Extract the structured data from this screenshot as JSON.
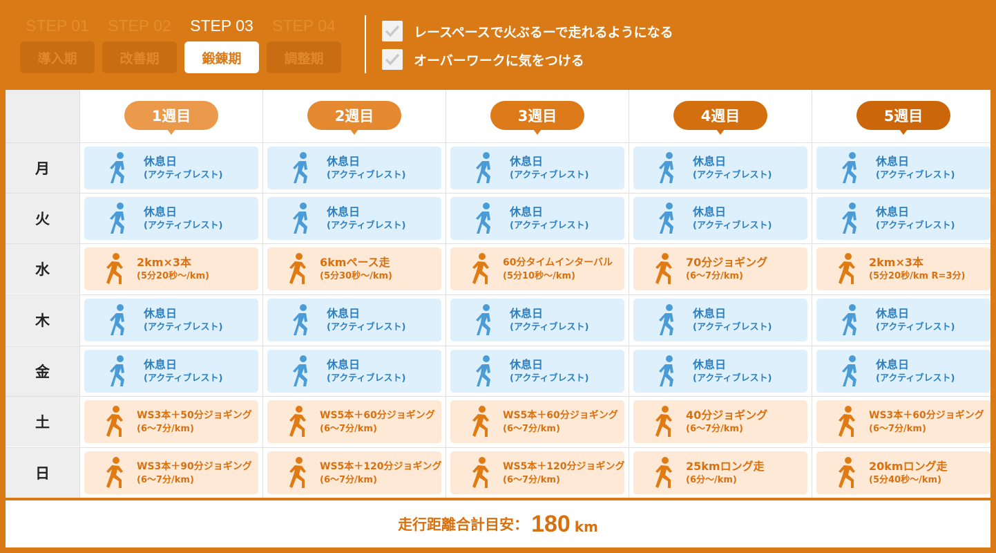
{
  "steps": [
    {
      "step": "STEP 01",
      "phase": "導入期"
    },
    {
      "step": "STEP 02",
      "phase": "改善期"
    },
    {
      "step": "STEP 03",
      "phase": "鍛錬期"
    },
    {
      "step": "STEP 04",
      "phase": "調整期"
    }
  ],
  "active_step": 2,
  "goals": [
    "レースペースで火ぶるーで走れるようになる",
    "オーバーワークに気をつける"
  ],
  "weeks": [
    "1週目",
    "2週目",
    "3週目",
    "4週目",
    "5週目"
  ],
  "week_colors": [
    "#eb9a4c",
    "#e58930",
    "#dd7a1a",
    "#d46f10",
    "#cc660b"
  ],
  "days": [
    "月",
    "火",
    "水",
    "木",
    "金",
    "土",
    "日"
  ],
  "schedule": [
    [
      {
        "type": "rest",
        "main": "休息日",
        "sub": "(アクティブレスト)"
      },
      {
        "type": "rest",
        "main": "休息日",
        "sub": "(アクティブレスト)"
      },
      {
        "type": "run",
        "main": "2km×3本",
        "sub": "(5分20秒〜/km)"
      },
      {
        "type": "rest",
        "main": "休息日",
        "sub": "(アクティブレスト)"
      },
      {
        "type": "rest",
        "main": "休息日",
        "sub": "(アクティブレスト)"
      },
      {
        "type": "run",
        "main": "WS3本＋50分ジョギング",
        "sub": "(6〜7分/km)"
      },
      {
        "type": "run",
        "main": "WS3本＋90分ジョギング",
        "sub": "(6〜7分/km)"
      }
    ],
    [
      {
        "type": "rest",
        "main": "休息日",
        "sub": "(アクティブレスト)"
      },
      {
        "type": "rest",
        "main": "休息日",
        "sub": "(アクティブレスト)"
      },
      {
        "type": "run",
        "main": "6kmペース走",
        "sub": "(5分30秒〜/km)"
      },
      {
        "type": "rest",
        "main": "休息日",
        "sub": "(アクティブレスト)"
      },
      {
        "type": "rest",
        "main": "休息日",
        "sub": "(アクティブレスト)"
      },
      {
        "type": "run",
        "main": "WS5本＋60分ジョギング",
        "sub": "(6〜7分/km)"
      },
      {
        "type": "run",
        "main": "WS5本＋120分ジョギング",
        "sub": "(6〜7分/km)"
      }
    ],
    [
      {
        "type": "rest",
        "main": "休息日",
        "sub": "(アクティブレスト)"
      },
      {
        "type": "rest",
        "main": "休息日",
        "sub": "(アクティブレスト)"
      },
      {
        "type": "run",
        "main": "60分タイムインターバル",
        "sub": "(5分10秒〜/km)"
      },
      {
        "type": "rest",
        "main": "休息日",
        "sub": "(アクティブレスト)"
      },
      {
        "type": "rest",
        "main": "休息日",
        "sub": "(アクティブレスト)"
      },
      {
        "type": "run",
        "main": "WS5本＋60分ジョギング",
        "sub": "(6〜7分/km)"
      },
      {
        "type": "run",
        "main": "WS5本＋120分ジョギング",
        "sub": "(6〜7分/km)"
      }
    ],
    [
      {
        "type": "rest",
        "main": "休息日",
        "sub": "(アクティブレスト)"
      },
      {
        "type": "rest",
        "main": "休息日",
        "sub": "(アクティブレスト)"
      },
      {
        "type": "run",
        "main": "70分ジョギング",
        "sub": "(6〜7分/km)"
      },
      {
        "type": "rest",
        "main": "休息日",
        "sub": "(アクティブレスト)"
      },
      {
        "type": "rest",
        "main": "休息日",
        "sub": "(アクティブレスト)"
      },
      {
        "type": "run",
        "main": "40分ジョギング",
        "sub": "(6〜7分/km)"
      },
      {
        "type": "run",
        "main": "25kmロング走",
        "sub": "(6分〜/km)"
      }
    ],
    [
      {
        "type": "rest",
        "main": "休息日",
        "sub": "(アクティブレスト)"
      },
      {
        "type": "rest",
        "main": "休息日",
        "sub": "(アクティブレスト)"
      },
      {
        "type": "run",
        "main": "2km×3本",
        "sub": "(5分20秒/km R=3分)"
      },
      {
        "type": "rest",
        "main": "休息日",
        "sub": "(アクティブレスト)"
      },
      {
        "type": "rest",
        "main": "休息日",
        "sub": "(アクティブレスト)"
      },
      {
        "type": "run",
        "main": "WS3本＋60分ジョギング",
        "sub": "(6〜7分/km)"
      },
      {
        "type": "run",
        "main": "20kmロング走",
        "sub": "(5分40秒〜/km)"
      }
    ]
  ],
  "icons": {
    "rest": "walking-person-icon",
    "run": "running-person-icon",
    "check": "check-icon"
  },
  "colors": {
    "brand": "#d97a17",
    "rest_bg": "#ddf0fb",
    "rest_fg": "#2d7fc0",
    "run_bg": "#fde9d6",
    "run_fg": "#d9700f"
  },
  "footer": {
    "label": "走行距離合計目安：",
    "value": "180",
    "unit": "km"
  }
}
